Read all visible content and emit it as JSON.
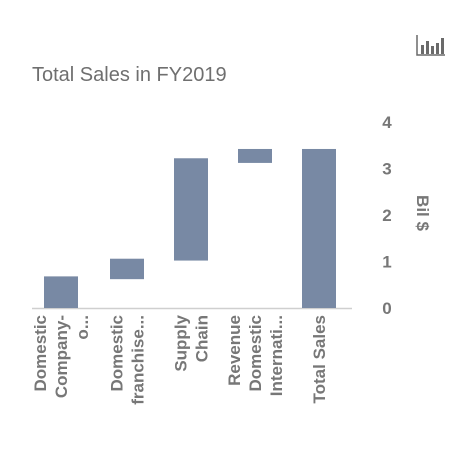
{
  "toolbar": {
    "chart_type_icon": "bar-chart-icon"
  },
  "chart_data": {
    "type": "waterfall",
    "title": "Total Sales in FY2019",
    "xlabel": "",
    "ylabel": "Bil $",
    "ylim": [
      0,
      4
    ],
    "yticks": [
      "0",
      "1",
      "2",
      "3",
      "4"
    ],
    "grid": false,
    "legend": "none",
    "color": "#7889a4",
    "categories": [
      [
        "Domestic",
        "Company-",
        "o..."
      ],
      [
        "Domestic",
        "franchise..."
      ],
      [
        "Supply",
        "Chain"
      ],
      [
        "Revenue",
        "Domestic",
        "Internati..."
      ],
      [
        "Total Sales"
      ]
    ],
    "bars": [
      {
        "start": 0,
        "end": 0.68
      },
      {
        "start": 0.62,
        "end": 1.06
      },
      {
        "start": 1.02,
        "end": 3.22
      },
      {
        "start": 3.12,
        "end": 3.42
      },
      {
        "start": 0,
        "end": 3.42
      }
    ]
  }
}
